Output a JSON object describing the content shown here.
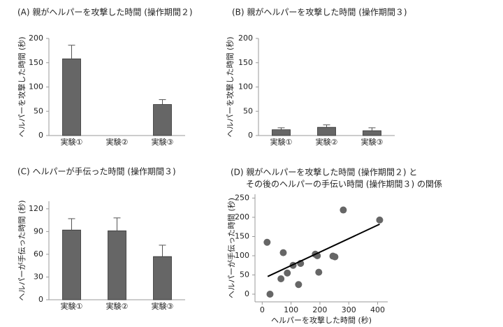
{
  "chart_data": [
    {
      "type": "bar",
      "title": [
        "(A) 親がヘルパーを攻撃した時間 (操作期間２)"
      ],
      "ylabel": "ヘルパーを攻撃した時間 (秒)",
      "categories": [
        "実験①",
        "実験②",
        "実験③"
      ],
      "values": [
        158,
        null,
        64
      ],
      "errors": [
        28,
        null,
        10
      ],
      "color": "#666666",
      "ylim": [
        0,
        200
      ],
      "yticks": [
        0,
        50,
        100,
        150,
        200
      ]
    },
    {
      "type": "bar",
      "title": [
        "(B) 親がヘルパーを攻撃した時間 (操作期間３)"
      ],
      "ylabel": "ヘルパーを攻撃した時間 (秒)",
      "categories": [
        "実験①",
        "実験②",
        "実験③"
      ],
      "values": [
        12,
        17,
        10
      ],
      "errors": [
        4,
        5,
        6
      ],
      "color": "#666666",
      "ylim": [
        0,
        200
      ],
      "yticks": [
        0,
        50,
        100,
        150,
        200
      ]
    },
    {
      "type": "bar",
      "title": [
        "(C) ヘルパーが手伝った時間 (操作期間３)"
      ],
      "ylabel": "ヘルパーが手伝った時間 (秒)",
      "categories": [
        "実験①",
        "実験②",
        "実験③"
      ],
      "values": [
        92,
        91,
        57
      ],
      "errors": [
        15,
        17,
        15
      ],
      "color": "#666666",
      "ylim": [
        0,
        130
      ],
      "yticks": [
        0,
        30,
        60,
        90,
        120
      ]
    },
    {
      "type": "scatter",
      "title": [
        "(D) 親がヘルパーを攻撃した時間 (操作期間２) と",
        "その後のヘルパーの手伝い時間 (操作期間３) の関係"
      ],
      "xlabel": "ヘルパーを攻撃した時間 (秒)",
      "ylabel": "ヘルパーが手伝った時間 (秒)",
      "x": [
        17,
        27,
        73,
        65,
        87,
        107,
        133,
        126,
        184,
        191,
        196,
        245,
        252,
        281,
        407
      ],
      "y": [
        135,
        0,
        108,
        40,
        55,
        75,
        80,
        25,
        104,
        100,
        57,
        99,
        97,
        219,
        193
      ],
      "color": "#666666",
      "trend_line": {
        "x": [
          19,
          407
        ],
        "y": [
          46,
          182
        ],
        "color": "#000000"
      },
      "xlim": [
        -25,
        435
      ],
      "ylim": [
        -20,
        260
      ],
      "xticks": [
        0,
        100,
        200,
        300,
        400
      ],
      "yticks": [
        0,
        50,
        100,
        150,
        200,
        250
      ]
    }
  ]
}
